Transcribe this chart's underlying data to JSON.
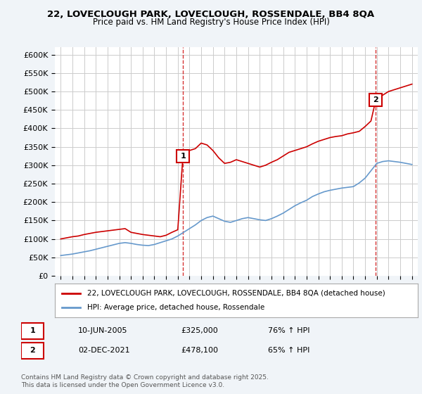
{
  "title1": "22, LOVECLOUGH PARK, LOVECLOUGH, ROSSENDALE, BB4 8QA",
  "title2": "Price paid vs. HM Land Registry's House Price Index (HPI)",
  "legend1": "22, LOVECLOUGH PARK, LOVECLOUGH, ROSSENDALE, BB4 8QA (detached house)",
  "legend2": "HPI: Average price, detached house, Rossendale",
  "point1_label": "1",
  "point1_date": "10-JUN-2005",
  "point1_price": "£325,000",
  "point1_hpi": "76% ↑ HPI",
  "point2_label": "2",
  "point2_date": "02-DEC-2021",
  "point2_price": "£478,100",
  "point2_hpi": "65% ↑ HPI",
  "footnote": "Contains HM Land Registry data © Crown copyright and database right 2025.\nThis data is licensed under the Open Government Licence v3.0.",
  "red_color": "#cc0000",
  "blue_color": "#6699cc",
  "background_color": "#f0f4f8",
  "plot_bg_color": "#ffffff",
  "ylim": [
    0,
    620000
  ],
  "yticks": [
    0,
    50000,
    100000,
    150000,
    200000,
    250000,
    300000,
    350000,
    400000,
    450000,
    500000,
    550000,
    600000
  ],
  "ytick_labels": [
    "£0",
    "£50K",
    "£100K",
    "£150K",
    "£200K",
    "£250K",
    "£300K",
    "£350K",
    "£400K",
    "£450K",
    "£500K",
    "£550K",
    "£600K"
  ],
  "red_x": [
    1995.0,
    1995.5,
    1996.0,
    1996.5,
    1997.0,
    1997.5,
    1998.0,
    1998.5,
    1999.0,
    1999.5,
    2000.0,
    2000.5,
    2001.0,
    2001.5,
    2002.0,
    2002.5,
    2003.0,
    2003.5,
    2004.0,
    2004.5,
    2005.0,
    2005.44,
    2005.5,
    2006.0,
    2006.5,
    2007.0,
    2007.5,
    2008.0,
    2008.5,
    2009.0,
    2009.5,
    2010.0,
    2010.5,
    2011.0,
    2011.5,
    2012.0,
    2012.5,
    2013.0,
    2013.5,
    2014.0,
    2014.5,
    2015.0,
    2015.5,
    2016.0,
    2016.5,
    2017.0,
    2017.5,
    2018.0,
    2018.5,
    2019.0,
    2019.5,
    2020.0,
    2020.5,
    2021.0,
    2021.5,
    2021.92,
    2022.0,
    2022.5,
    2023.0,
    2023.5,
    2024.0,
    2024.5,
    2025.0
  ],
  "red_y": [
    100000,
    103000,
    106000,
    108000,
    112000,
    115000,
    118000,
    120000,
    122000,
    124000,
    126000,
    128000,
    118000,
    115000,
    112000,
    110000,
    108000,
    106000,
    110000,
    118000,
    125000,
    325000,
    330000,
    340000,
    345000,
    360000,
    355000,
    340000,
    320000,
    305000,
    308000,
    315000,
    310000,
    305000,
    300000,
    295000,
    300000,
    308000,
    315000,
    325000,
    335000,
    340000,
    345000,
    350000,
    358000,
    365000,
    370000,
    375000,
    378000,
    380000,
    385000,
    388000,
    392000,
    405000,
    420000,
    478100,
    480000,
    490000,
    500000,
    505000,
    510000,
    515000,
    520000
  ],
  "blue_x": [
    1995.0,
    1995.5,
    1996.0,
    1996.5,
    1997.0,
    1997.5,
    1998.0,
    1998.5,
    1999.0,
    1999.5,
    2000.0,
    2000.5,
    2001.0,
    2001.5,
    2002.0,
    2002.5,
    2003.0,
    2003.5,
    2004.0,
    2004.5,
    2005.0,
    2005.5,
    2006.0,
    2006.5,
    2007.0,
    2007.5,
    2008.0,
    2008.5,
    2009.0,
    2009.5,
    2010.0,
    2010.5,
    2011.0,
    2011.5,
    2012.0,
    2012.5,
    2013.0,
    2013.5,
    2014.0,
    2014.5,
    2015.0,
    2015.5,
    2016.0,
    2016.5,
    2017.0,
    2017.5,
    2018.0,
    2018.5,
    2019.0,
    2019.5,
    2020.0,
    2020.5,
    2021.0,
    2021.5,
    2022.0,
    2022.5,
    2023.0,
    2023.5,
    2024.0,
    2024.5,
    2025.0
  ],
  "blue_y": [
    55000,
    57000,
    59000,
    62000,
    65000,
    68000,
    72000,
    76000,
    80000,
    84000,
    88000,
    90000,
    88000,
    85000,
    83000,
    82000,
    85000,
    90000,
    95000,
    100000,
    108000,
    118000,
    128000,
    138000,
    150000,
    158000,
    162000,
    155000,
    148000,
    145000,
    150000,
    155000,
    158000,
    155000,
    152000,
    150000,
    155000,
    162000,
    170000,
    180000,
    190000,
    198000,
    205000,
    215000,
    222000,
    228000,
    232000,
    235000,
    238000,
    240000,
    242000,
    252000,
    265000,
    285000,
    305000,
    310000,
    312000,
    310000,
    308000,
    305000,
    302000
  ],
  "point1_x": 2005.44,
  "point1_y": 325000,
  "point2_x": 2021.92,
  "point2_y": 478100,
  "vline1_x": 2005.44,
  "vline2_x": 2021.92,
  "xmin": 1994.5,
  "xmax": 2025.5
}
